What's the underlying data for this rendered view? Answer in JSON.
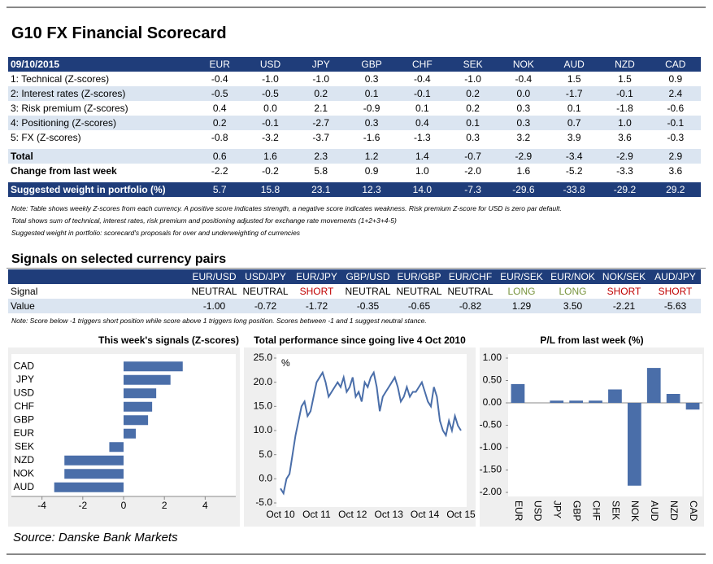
{
  "title": "G10 FX Financial Scorecard",
  "scorecard": {
    "header": [
      "09/10/2015",
      "EUR",
      "USD",
      "JPY",
      "GBP",
      "CHF",
      "SEK",
      "NOK",
      "AUD",
      "NZD",
      "CAD"
    ],
    "rows": [
      [
        "1: Technical (Z-scores)",
        "-0.4",
        "-1.0",
        "-1.0",
        "0.3",
        "-0.4",
        "-1.0",
        "-0.4",
        "1.5",
        "1.5",
        "0.9"
      ],
      [
        "2: Interest rates (Z-scores)",
        "-0.5",
        "-0.5",
        "0.2",
        "0.1",
        "-0.1",
        "0.2",
        "0.0",
        "-1.7",
        "-0.1",
        "2.4"
      ],
      [
        "3: Risk premium (Z-scores)",
        "0.4",
        "0.0",
        "2.1",
        "-0.9",
        "0.1",
        "0.2",
        "0.3",
        "0.1",
        "-1.8",
        "-0.6"
      ],
      [
        "4: Positioning (Z-scores)",
        "0.2",
        "-0.1",
        "-2.7",
        "0.3",
        "0.4",
        "0.1",
        "0.3",
        "0.7",
        "1.0",
        "-0.1"
      ],
      [
        "5: FX (Z-scores)",
        "-0.8",
        "-3.2",
        "-3.7",
        "-1.6",
        "-1.3",
        "0.3",
        "3.2",
        "3.9",
        "3.6",
        "-0.3"
      ]
    ],
    "total": [
      "Total",
      "0.6",
      "1.6",
      "2.3",
      "1.2",
      "1.4",
      "-0.7",
      "-2.9",
      "-3.4",
      "-2.9",
      "2.9"
    ],
    "change": [
      "Change from last week",
      "-2.2",
      "-0.2",
      "5.8",
      "0.9",
      "1.0",
      "-2.0",
      "1.6",
      "-5.2",
      "-3.3",
      "3.6"
    ],
    "weight": [
      "Suggested weight in portfolio (%)",
      "5.7",
      "15.8",
      "23.1",
      "12.3",
      "14.0",
      "-7.3",
      "-29.6",
      "-33.8",
      "-29.2",
      "29.2"
    ]
  },
  "notes": [
    "Note: Table shows weekly Z-scores from each currency. A positive score indicates strength, a negative score indicates weakness. Risk premium Z-score for USD is zero par default.",
    "Total shows sum of technical, interest rates, risk premium and positioning adjusted for exchange rate movements (1+2+3+4-5)",
    "Suggested weight in portfolio: scorecard's proposals for over and underweighting of currencies"
  ],
  "signals": {
    "title": "Signals on selected currency pairs",
    "header": [
      "EUR/USD",
      "USD/JPY",
      "EUR/JPY",
      "GBP/USD",
      "EUR/GBP",
      "EUR/CHF",
      "EUR/SEK",
      "EUR/NOK",
      "NOK/SEK",
      "AUD/JPY"
    ],
    "signal": [
      "Signal",
      "NEUTRAL",
      "NEUTRAL",
      "SHORT",
      "NEUTRAL",
      "NEUTRAL",
      "NEUTRAL",
      "LONG",
      "LONG",
      "SHORT",
      "SHORT"
    ],
    "signal_colors": [
      "#000000",
      "#000000",
      "#000000",
      "#c00000",
      "#000000",
      "#000000",
      "#000000",
      "#77933c",
      "#77933c",
      "#c00000",
      "#c00000"
    ],
    "value": [
      "Value",
      "-1.00",
      "-0.72",
      "-1.72",
      "-0.35",
      "-0.65",
      "-0.82",
      "1.29",
      "3.50",
      "-2.21",
      "-5.63"
    ],
    "note": "Note: Score below -1 triggers short position while score above 1 triggers long position. Scores between -1 and 1 suggest neutral stance."
  },
  "chart_data": [
    {
      "type": "hbar",
      "title": "This week's signals (Z-scores)",
      "categories": [
        "CAD",
        "JPY",
        "USD",
        "CHF",
        "GBP",
        "EUR",
        "SEK",
        "NZD",
        "NOK",
        "AUD"
      ],
      "values": [
        2.9,
        2.3,
        1.6,
        1.4,
        1.2,
        0.6,
        -0.7,
        -2.9,
        -2.9,
        -3.4
      ],
      "color": "#4a6ea9",
      "xlim": [
        -5.5,
        5.5
      ],
      "xticks": [
        -4,
        -2,
        0,
        2,
        4
      ]
    },
    {
      "type": "line",
      "title": "Total performance since going live 4 Oct 2010",
      "y_label": "%",
      "categories": [
        "Oct 10",
        null,
        null,
        null,
        null,
        null,
        null,
        null,
        null,
        null,
        null,
        null,
        "Oct 11",
        null,
        null,
        null,
        null,
        null,
        null,
        null,
        null,
        null,
        null,
        null,
        "Oct 12",
        null,
        null,
        null,
        null,
        null,
        null,
        null,
        null,
        null,
        null,
        null,
        "Oct 13",
        null,
        null,
        null,
        null,
        null,
        null,
        null,
        null,
        null,
        null,
        null,
        "Oct 14",
        null,
        null,
        null,
        null,
        null,
        null,
        null,
        null,
        null,
        null,
        null,
        "Oct 15"
      ],
      "values": [
        -2,
        -3,
        0,
        1,
        5,
        9,
        12,
        15,
        16,
        13,
        14,
        17,
        20,
        21,
        22,
        20,
        17,
        18,
        19,
        20,
        19,
        21,
        18,
        19,
        21,
        17,
        18,
        16,
        20,
        19,
        21,
        22,
        19,
        14,
        17,
        18,
        19,
        20,
        21,
        19,
        16,
        17,
        19,
        17,
        18,
        18,
        19,
        20,
        18,
        16,
        15,
        19,
        17,
        12,
        10,
        9,
        12,
        10,
        13,
        11,
        10
      ],
      "color": "#4a6ea9",
      "ylim": [
        -5,
        25
      ],
      "yticks": [
        {
          "value": -5,
          "label": "-5.0"
        },
        {
          "value": 0,
          "label": "0.0"
        },
        {
          "value": 5,
          "label": "5.0"
        },
        {
          "value": 10,
          "label": "10.0"
        },
        {
          "value": 15,
          "label": "15.0"
        },
        {
          "value": 20,
          "label": "20.0"
        },
        {
          "value": 25,
          "label": "25.0"
        }
      ]
    },
    {
      "type": "bar",
      "title": "P/L from last week (%)",
      "categories": [
        "EUR",
        "USD",
        "JPY",
        "GBP",
        "CHF",
        "SEK",
        "NOK",
        "AUD",
        "NZD",
        "CAD"
      ],
      "values": [
        0.42,
        0,
        0.05,
        0.05,
        0.05,
        0.3,
        -1.85,
        0.78,
        0.2,
        -0.15
      ],
      "color": "#4a6ea9",
      "ylim": [
        -2,
        1
      ],
      "yticks": [
        {
          "value": -2,
          "label": "-2.00"
        },
        {
          "value": -1.5,
          "label": "-1.50"
        },
        {
          "value": -1,
          "label": "-1.00"
        },
        {
          "value": -0.5,
          "label": "-0.50"
        },
        {
          "value": 0,
          "label": "0.00"
        },
        {
          "value": 0.5,
          "label": "0.50"
        },
        {
          "value": 1,
          "label": "1.00"
        }
      ]
    }
  ],
  "source": "Source: Danske Bank Markets"
}
